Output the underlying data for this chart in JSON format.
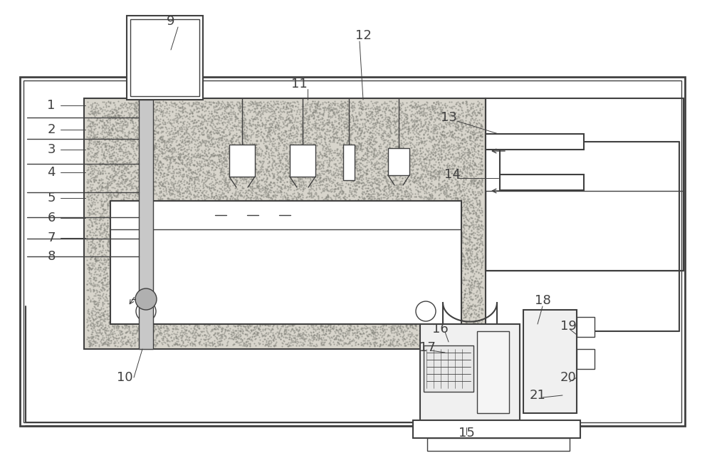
{
  "bg_color": "#ffffff",
  "line_color": "#404040",
  "sand_color": "#c8c8c0",
  "label_color": "#404040",
  "fig_w": 10.0,
  "fig_h": 6.43,
  "dpi": 100
}
